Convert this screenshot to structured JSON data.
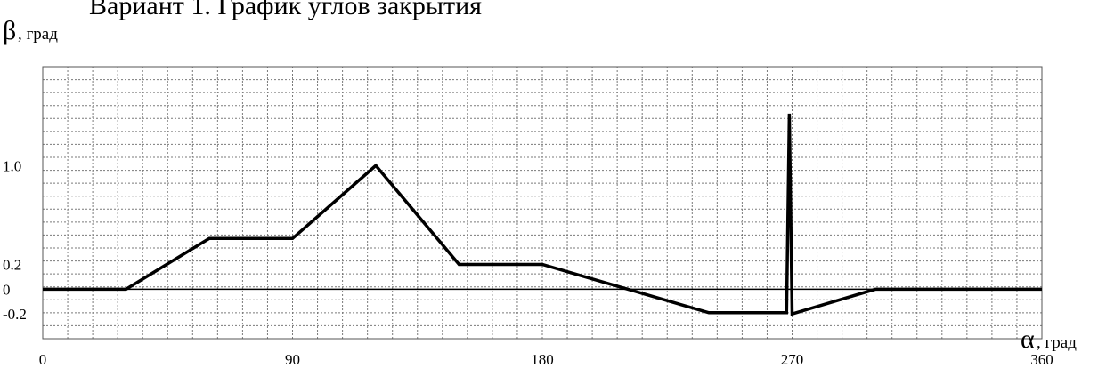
{
  "chart_data": {
    "type": "line",
    "title": "Вариант 1. График углов закрытия",
    "ylabel": {
      "symbol": "β",
      "unit": ", град"
    },
    "xlabel": {
      "symbol": "α",
      "unit": ", град"
    },
    "xlim": [
      0,
      360
    ],
    "ylim": [
      -0.4,
      1.8
    ],
    "x_ticks": [
      "0",
      "90",
      "180",
      "270",
      "360"
    ],
    "y_ticks": [
      "1.0",
      "0.2",
      "0",
      "-0.2"
    ],
    "y_tick_values": [
      1.0,
      0.2,
      0,
      -0.2
    ],
    "grid": true,
    "x_gridlines": 41,
    "y_gridlines": 22,
    "series": [
      {
        "x": [
          0,
          30,
          60,
          90,
          120,
          150,
          180,
          240,
          268,
          269,
          270,
          300,
          360
        ],
        "y": [
          0,
          0,
          0.41,
          0.41,
          1.0,
          0.2,
          0.2,
          -0.19,
          -0.19,
          1.42,
          -0.2,
          0,
          0
        ]
      }
    ]
  }
}
